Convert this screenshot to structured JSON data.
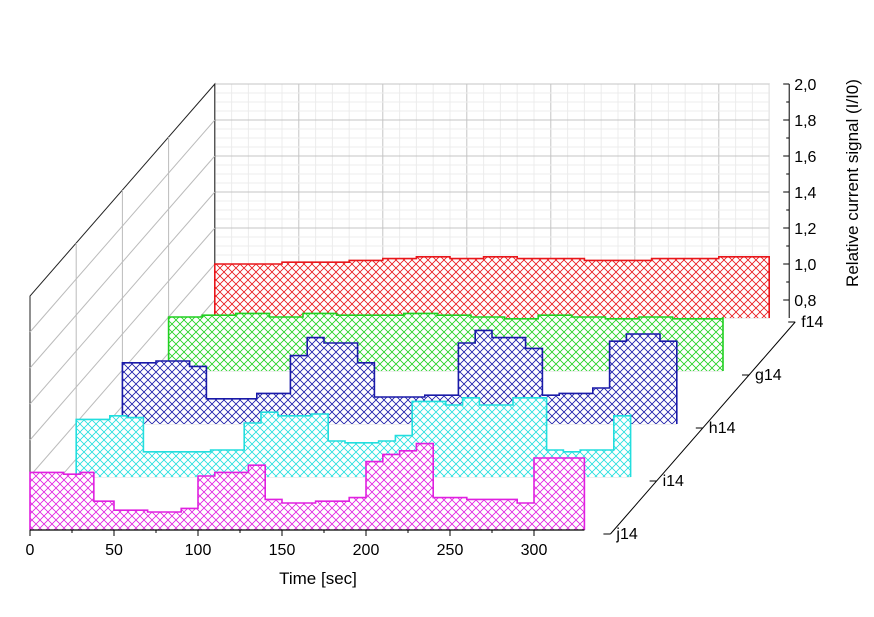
{
  "chart_data": {
    "type": "area",
    "chart_kind": "3d-waterfall",
    "xlabel": "Time [sec]",
    "zlabel": "Relative current signal (I/I0)",
    "x_ticks": [
      "0",
      "50",
      "100",
      "150",
      "200",
      "250",
      "300"
    ],
    "z_ticks": [
      "0,8",
      "1,0",
      "1,2",
      "1,4",
      "1,6",
      "1,8",
      "2,0"
    ],
    "xlim": [
      0,
      330
    ],
    "zlim": [
      0.7,
      2.0
    ],
    "grid": true,
    "fill_pattern": "cross-hatch",
    "series": [
      {
        "name": "f14",
        "color": "#e8161a",
        "x": [
          0,
          20,
          40,
          60,
          80,
          100,
          120,
          140,
          160,
          180,
          200,
          220,
          240,
          260,
          280,
          300,
          330
        ],
        "values": [
          1.0,
          1.0,
          1.01,
          1.01,
          1.02,
          1.03,
          1.04,
          1.03,
          1.04,
          1.03,
          1.03,
          1.02,
          1.02,
          1.03,
          1.03,
          1.04,
          1.04
        ]
      },
      {
        "name": "g14",
        "color": "#20d020",
        "x": [
          0,
          20,
          40,
          60,
          80,
          100,
          120,
          140,
          160,
          180,
          200,
          220,
          240,
          260,
          280,
          300,
          330
        ],
        "values": [
          1.0,
          1.01,
          1.02,
          1.0,
          1.02,
          1.01,
          1.01,
          1.02,
          1.01,
          1.0,
          0.99,
          1.01,
          1.0,
          0.99,
          1.0,
          0.99,
          1.0
        ]
      },
      {
        "name": "h14",
        "color": "#1a1aa8",
        "x": [
          0,
          20,
          40,
          50,
          60,
          80,
          100,
          110,
          120,
          140,
          150,
          160,
          180,
          200,
          210,
          220,
          240,
          250,
          260,
          280,
          290,
          300,
          320,
          330
        ],
        "values": [
          1.04,
          1.05,
          1.02,
          0.84,
          0.84,
          0.87,
          1.08,
          1.18,
          1.15,
          1.04,
          0.85,
          0.85,
          0.86,
          1.15,
          1.22,
          1.18,
          1.12,
          0.86,
          0.87,
          0.9,
          1.16,
          1.2,
          1.16,
          1.15
        ]
      },
      {
        "name": "i14",
        "color": "#22dede",
        "x": [
          0,
          20,
          30,
          40,
          60,
          80,
          100,
          110,
          120,
          140,
          150,
          160,
          180,
          190,
          200,
          220,
          230,
          240,
          260,
          280,
          290,
          300,
          320,
          330
        ],
        "values": [
          1.02,
          1.04,
          1.03,
          0.84,
          0.84,
          0.85,
          1.0,
          1.06,
          1.04,
          1.05,
          0.9,
          0.89,
          0.9,
          0.93,
          1.12,
          1.1,
          1.14,
          1.1,
          1.14,
          0.85,
          0.84,
          0.85,
          1.04,
          1.05
        ]
      },
      {
        "name": "j14",
        "color": "#e020e0",
        "x": [
          0,
          20,
          30,
          38,
          50,
          70,
          90,
          100,
          110,
          130,
          140,
          150,
          170,
          190,
          200,
          210,
          220,
          230,
          240,
          260,
          280,
          290,
          300,
          320,
          330
        ],
        "values": [
          1.02,
          1.01,
          1.02,
          0.86,
          0.81,
          0.8,
          0.82,
          1.0,
          1.02,
          1.06,
          0.87,
          0.85,
          0.86,
          0.88,
          1.08,
          1.12,
          1.14,
          1.18,
          0.88,
          0.87,
          0.87,
          0.85,
          1.1,
          1.1,
          1.1
        ]
      }
    ]
  }
}
